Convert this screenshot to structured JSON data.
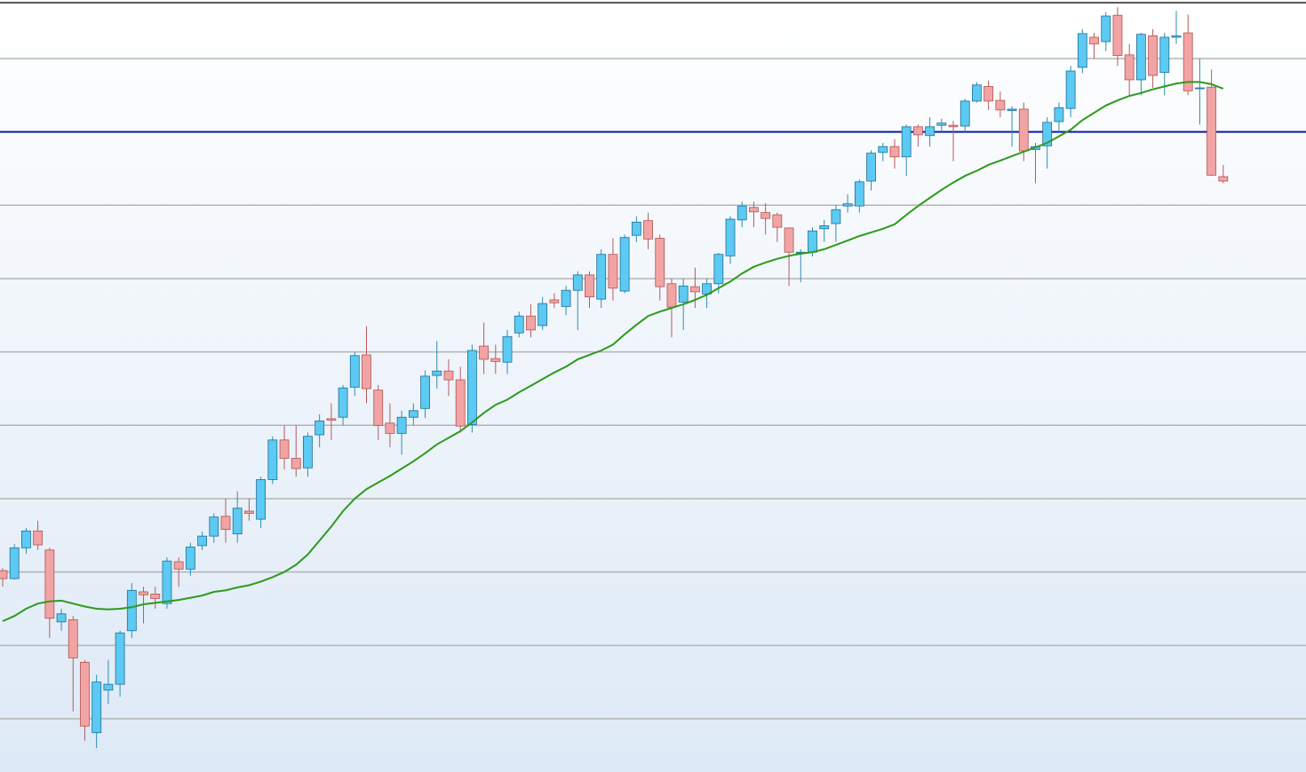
{
  "chart_data": {
    "type": "candlestick",
    "open": [
      30.2,
      29.1,
      33.3,
      35.6,
      33,
      23.2,
      23.5,
      17.7,
      8.1,
      13.9,
      14.7,
      22,
      27.3,
      27,
      25.7,
      31.4,
      30.4,
      33.6,
      34.9,
      37.6,
      35.2,
      38.3,
      37.2,
      42.6,
      48,
      45.5,
      44.2,
      48.7,
      50.9,
      51.1,
      55.2,
      59.6,
      54.8,
      50.3,
      48.9,
      51.1,
      52.3,
      56.8,
      57.4,
      56.2,
      50.1,
      60.8,
      59.1,
      58.6,
      62.6,
      64.9,
      63.6,
      67.1,
      66.2,
      68.4,
      70.5,
      67.2,
      73.3,
      68.3,
      75.9,
      77.9,
      75.5,
      69.3,
      66.8,
      68.9,
      67.9,
      69.3,
      73.1,
      78,
      79.7,
      79,
      78.7,
      76.9,
      73.5,
      73.6,
      76.8,
      77.5,
      79.9,
      79.9,
      83.3,
      87.2,
      88,
      86.6,
      90.7,
      89.5,
      90.9,
      90.9,
      90.8,
      94.2,
      96.2,
      94.3,
      92.9,
      93.1,
      87.6,
      88.1,
      91.4,
      93.2,
      98.8,
      102.9,
      102.3,
      105.9,
      100.5,
      97.1,
      103.1,
      98.1,
      102.9,
      103.5,
      95.9,
      96.1,
      83.9
    ],
    "high": [
      30.5,
      33.8,
      36,
      37,
      33.3,
      25,
      24,
      18,
      16,
      18,
      22,
      28.5,
      28,
      28,
      32,
      32,
      34,
      35.5,
      38,
      40,
      41,
      40,
      43,
      48.5,
      50,
      50,
      49,
      51.5,
      53,
      55.5,
      60,
      63.5,
      55.5,
      53,
      52,
      53,
      57.5,
      61.5,
      59,
      58,
      61,
      64,
      61,
      63,
      65.5,
      66.5,
      67.5,
      68,
      69,
      71,
      71,
      74,
      75.5,
      76,
      78.5,
      79,
      76,
      70,
      70,
      71.5,
      70,
      73.5,
      78.5,
      80.5,
      80.5,
      80.3,
      79,
      77,
      74,
      77,
      78,
      80,
      81.5,
      83.5,
      87.5,
      88.5,
      89,
      91,
      91,
      92,
      91.8,
      91.5,
      94.5,
      96.8,
      97,
      95.5,
      93.5,
      94,
      88.5,
      92,
      94,
      99,
      104,
      103.5,
      106.3,
      107,
      102,
      103.5,
      104,
      103.5,
      106.5,
      106,
      100,
      98.5,
      85.5
    ],
    "low": [
      28,
      29,
      32.5,
      33,
      21,
      22,
      11,
      7,
      6,
      12,
      13,
      21,
      23,
      25,
      25,
      28,
      29.5,
      33,
      34,
      34,
      34,
      37,
      36,
      42,
      44,
      43,
      43,
      47,
      48,
      50,
      54,
      53,
      48,
      47,
      46,
      50,
      51,
      55,
      54,
      49,
      49,
      57,
      57,
      57,
      62,
      62,
      63,
      66,
      65,
      63,
      66,
      66,
      67,
      68,
      75,
      74,
      67,
      62,
      63,
      66,
      66,
      68,
      72,
      77,
      77,
      76,
      75,
      69,
      69.5,
      73,
      75,
      75,
      79,
      79,
      82,
      86,
      85,
      84,
      88,
      88,
      90,
      86,
      90,
      94,
      93,
      92,
      88,
      86,
      83,
      85,
      90,
      92,
      98,
      100,
      101,
      99,
      95,
      95,
      96,
      95,
      102,
      95,
      91,
      84,
      83
    ],
    "close": [
      29.1,
      33.3,
      35.6,
      33.7,
      23.7,
      24.3,
      18.3,
      9,
      15,
      14.7,
      21.7,
      27.5,
      26.9,
      26.4,
      31.5,
      30.4,
      33.4,
      34.9,
      37.5,
      35.8,
      38.7,
      38,
      42.6,
      48,
      45.5,
      44.1,
      48.5,
      50.6,
      50.7,
      55.1,
      59.5,
      55,
      50,
      48.9,
      51.1,
      52,
      56.7,
      57.4,
      56.2,
      49.9,
      60.2,
      59,
      58.7,
      62.1,
      64.9,
      63,
      66.6,
      66.7,
      68.4,
      70.5,
      67.5,
      73.3,
      68.7,
      75.6,
      77.7,
      75.4,
      68.9,
      66.1,
      69,
      68.2,
      69.3,
      73.3,
      78.1,
      79.9,
      79.1,
      78.2,
      77,
      73.6,
      73.6,
      76.5,
      77.2,
      79.4,
      80.2,
      83.2,
      87.1,
      88,
      86.6,
      90.7,
      89.6,
      90.7,
      91.2,
      90.7,
      94.2,
      96.4,
      94.2,
      93,
      93.1,
      87.4,
      88,
      91.3,
      93.3,
      98.3,
      103.4,
      102,
      105.8,
      100.4,
      97.1,
      103.3,
      97.7,
      102.9,
      103.1,
      95.6,
      96,
      84.1,
      83.3
    ],
    "moving_average": {
      "color": "#2e9a1e",
      "values": [
        23.3,
        24,
        25,
        25.7,
        26,
        26.1,
        25.7,
        25.3,
        25,
        24.9,
        25,
        25.2,
        25.6,
        25.8,
        26,
        26.2,
        26.5,
        26.8,
        27.3,
        27.5,
        27.9,
        28.2,
        28.7,
        29.3,
        30,
        31,
        32.4,
        34.3,
        36.2,
        38.3,
        40,
        41.3,
        42.2,
        43.1,
        44.1,
        45.1,
        46.2,
        47.4,
        48.3,
        49.2,
        50.4,
        51.7,
        52.8,
        53.5,
        54.5,
        55.4,
        56.3,
        57.2,
        58,
        59,
        59.6,
        60.2,
        61,
        62.4,
        63.7,
        64.9,
        65.5,
        66,
        66.5,
        67.1,
        67.8,
        68.7,
        69.6,
        70.7,
        71.6,
        72.2,
        72.7,
        73.1,
        73.4,
        73.6,
        74,
        74.6,
        75.2,
        75.8,
        76.3,
        76.8,
        77.4,
        78.7,
        79.9,
        81,
        82.1,
        83.1,
        84,
        84.7,
        85.5,
        86.1,
        86.7,
        87.3,
        87.9,
        88.5,
        89.4,
        90.3,
        91.6,
        92.6,
        93.6,
        94.3,
        94.9,
        95.3,
        95.8,
        96.2,
        96.6,
        96.8,
        96.8,
        96.5,
        95.9
      ]
    },
    "up_color": "#5ccaf2",
    "down_color": "#f2a3a3",
    "hlines": [
      {
        "value": 90,
        "color": "#0b1aa8"
      }
    ],
    "ylim": [
      2.74,
      107.98
    ],
    "yticks": [
      10,
      20,
      30,
      40,
      50,
      60,
      70,
      80,
      90,
      100
    ],
    "grid": true
  }
}
